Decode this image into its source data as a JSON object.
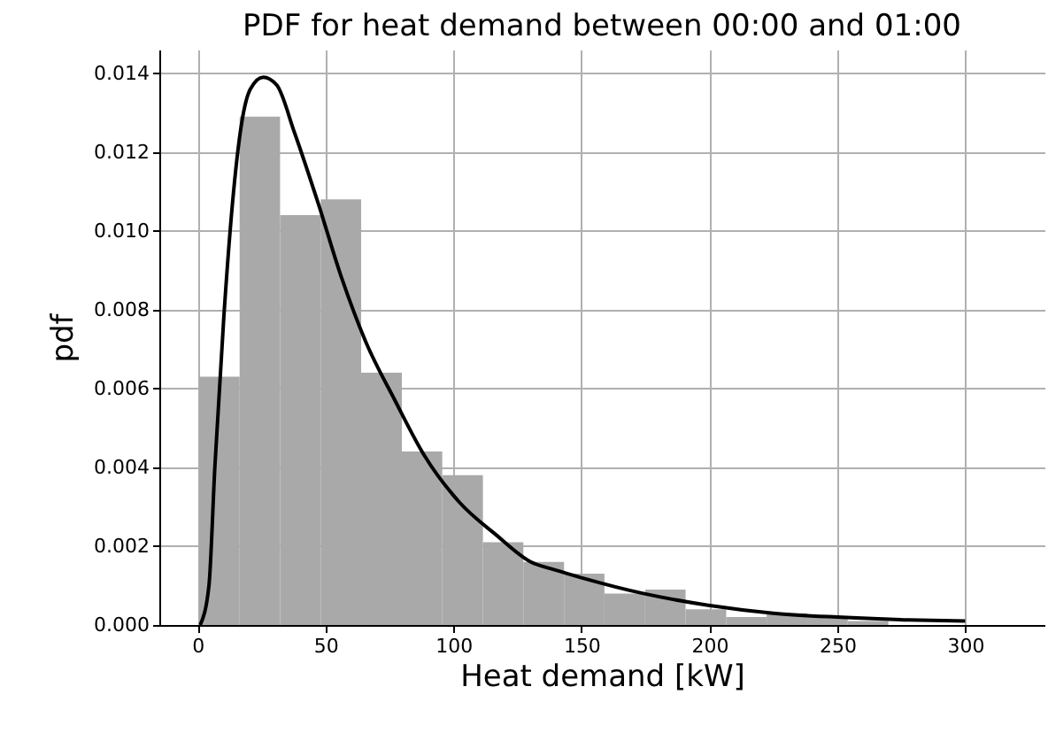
{
  "chart_data": {
    "type": "histogram",
    "title": "PDF for heat demand between 00:00 and 01:00",
    "xlabel": "Heat demand [kW]",
    "ylabel": "pdf",
    "xlim": [
      -15,
      331
    ],
    "ylim": [
      0,
      0.0146
    ],
    "xticks": [
      0,
      50,
      100,
      150,
      200,
      250,
      300
    ],
    "yticks": [
      {
        "value": 0,
        "label": "0.000"
      },
      {
        "value": 0.002,
        "label": "0.002"
      },
      {
        "value": 0.004,
        "label": "0.004"
      },
      {
        "value": 0.006,
        "label": "0.006"
      },
      {
        "value": 0.008,
        "label": "0.008"
      },
      {
        "value": 0.01,
        "label": "0.010"
      },
      {
        "value": 0.012,
        "label": "0.012"
      },
      {
        "value": 0.014,
        "label": "0.014"
      }
    ],
    "grid": true,
    "series": [
      {
        "color": "#a9a9a9",
        "bins": [
          0.5,
          16.4,
          32.2,
          48.1,
          63.9,
          79.8,
          95.6,
          111.5,
          127.3,
          143.2,
          159.0,
          174.9,
          190.7,
          206.6,
          222.4,
          238.3,
          254.1,
          270.0
        ],
        "values": [
          0.0063,
          0.0129,
          0.0104,
          0.0108,
          0.0064,
          0.0044,
          0.0038,
          0.0021,
          0.0016,
          0.0013,
          0.0008,
          0.0009,
          0.0004,
          0.0002,
          0.0003,
          0.0002,
          0.0001
        ]
      },
      {
        "type": "line",
        "color": "#000000",
        "line_style": "solid",
        "x": [
          1.0,
          4.4,
          6.7,
          10.2,
          13.6,
          17.1,
          20.6,
          25.6,
          30.9,
          37.8,
          47.1,
          56.3,
          65.6,
          77.1,
          88.6,
          102.5,
          116.4,
          130.2,
          139.5,
          150,
          174.2,
          199.6,
          225,
          250,
          278,
          300
        ],
        "values": [
          0,
          0.001,
          0.004,
          0.0078,
          0.0107,
          0.0127,
          0.0136,
          0.0139,
          0.0137,
          0.0125,
          0.0107,
          0.0088,
          0.0072,
          0.0057,
          0.0043,
          0.0031,
          0.0023,
          0.0016,
          0.0014,
          0.0012,
          0.0008,
          0.0005,
          0.0003,
          0.0002,
          0.00013,
          0.0001
        ]
      }
    ]
  }
}
